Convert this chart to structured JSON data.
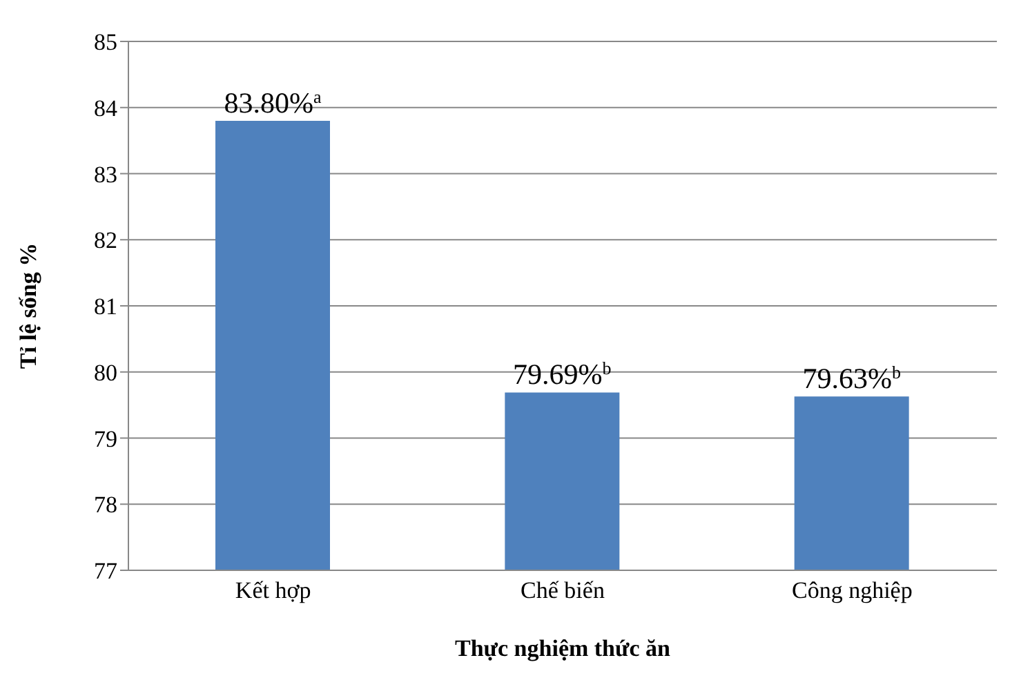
{
  "chart_data": {
    "type": "bar",
    "xlabel": "Thực nghiệm thức ăn",
    "ylabel": "Tỉ lệ sống  %",
    "categories": [
      "Kết hợp",
      "Chế biến",
      "Công nghiệp"
    ],
    "values": [
      83.8,
      79.69,
      79.63
    ],
    "color": "#4f81bd",
    "value_labels": [
      "83.80%$^{a}$",
      "79.69%$^{b}$",
      "79.63%$^{b}$"
    ],
    "ylim": [
      77,
      85
    ],
    "yticks": [
      77,
      78,
      79,
      80,
      81,
      82,
      83,
      84,
      85
    ],
    "grid": "y"
  }
}
